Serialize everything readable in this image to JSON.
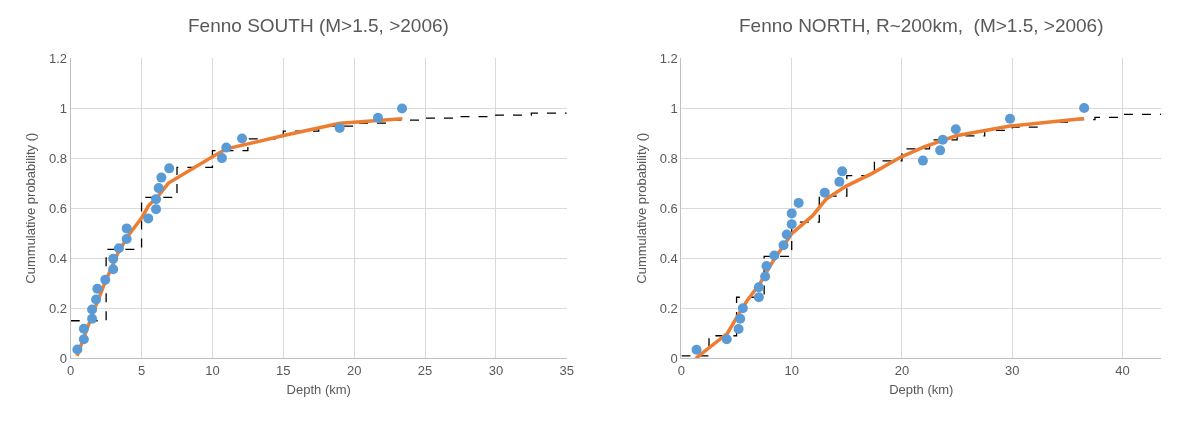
{
  "chart_data": [
    {
      "type": "scatter",
      "title": "Fenno SOUTH (M>1.5, >2006)",
      "xlabel": "Depth (km)",
      "ylabel": "Cummulative probability ()",
      "xlim": [
        0,
        35
      ],
      "xticks": [
        0,
        5,
        10,
        15,
        20,
        25,
        30,
        35
      ],
      "ylim": [
        0,
        1.2
      ],
      "yticks": [
        0,
        0.2,
        0.4,
        0.6,
        0.8,
        1,
        1.2
      ],
      "grid": true,
      "series": [
        {
          "type": "step",
          "color": "#000000",
          "line_style": "dashed",
          "marker": "none",
          "x": [
            0,
            2.5,
            5,
            7.5,
            10,
            12.5,
            15,
            17.5,
            20,
            22.5,
            25,
            27.5,
            30,
            32.5,
            35
          ],
          "values": [
            0.15,
            0.435,
            0.643,
            0.763,
            0.83,
            0.877,
            0.908,
            0.928,
            0.94,
            0.952,
            0.96,
            0.966,
            0.972,
            0.98,
            0.98
          ]
        },
        {
          "type": "line",
          "color": "#ed7d31",
          "line_style": "solid",
          "marker": "none",
          "x": [
            0.45,
            1.5,
            2.4,
            3.3,
            4.1,
            5.0,
            5.5,
            6.2,
            6.9,
            10.0,
            11.0,
            15.1,
            19.0,
            23.4
          ],
          "values": [
            0.01,
            0.17,
            0.3,
            0.417,
            0.494,
            0.56,
            0.61,
            0.65,
            0.7,
            0.805,
            0.837,
            0.891,
            0.939,
            0.957
          ]
        },
        {
          "color": "#5b9bd5",
          "marker": "circle",
          "x": [
            0.47,
            0.93,
            0.93,
            1.51,
            1.51,
            1.79,
            1.88,
            2.44,
            3.0,
            3.0,
            3.4,
            3.95,
            3.95,
            5.47,
            6.02,
            6.02,
            6.21,
            6.4,
            6.95,
            10.67,
            10.98,
            12.09,
            18.98,
            21.68,
            23.38
          ],
          "values": [
            0.035,
            0.076,
            0.118,
            0.158,
            0.195,
            0.235,
            0.278,
            0.314,
            0.356,
            0.398,
            0.44,
            0.477,
            0.519,
            0.559,
            0.596,
            0.636,
            0.68,
            0.722,
            0.759,
            0.8,
            0.842,
            0.878,
            0.92,
            0.961,
            0.998
          ]
        }
      ]
    },
    {
      "type": "scatter",
      "title": "Fenno NORTH, R~200km,  (M>1.5, >2006)",
      "xlabel": "Depth (km)",
      "ylabel": "Cummulative probability ()",
      "xlim": [
        0,
        43.5
      ],
      "xticks": [
        0,
        10,
        20,
        30,
        40
      ],
      "ylim": [
        0,
        1.2
      ],
      "yticks": [
        0,
        0.2,
        0.4,
        0.6,
        0.8,
        1,
        1.2
      ],
      "grid": true,
      "series": [
        {
          "type": "step",
          "color": "#000000",
          "line_style": "dashed",
          "marker": "none",
          "x": [
            0,
            2.5,
            5,
            7.5,
            10,
            12.5,
            15,
            17.5,
            20,
            22.5,
            25,
            27.5,
            30,
            32.5,
            35,
            37.5,
            40,
            43.5
          ],
          "values": [
            0.01,
            0.09,
            0.244,
            0.407,
            0.544,
            0.648,
            0.73,
            0.789,
            0.837,
            0.873,
            0.889,
            0.911,
            0.924,
            0.944,
            0.954,
            0.963,
            0.975,
            0.978
          ]
        },
        {
          "type": "line",
          "color": "#ed7d31",
          "line_style": "solid",
          "marker": "none",
          "x": [
            1.3,
            4.17,
            5.06,
            5.95,
            7.14,
            8.33,
            10.0,
            11.9,
            13.1,
            14.9,
            17.3,
            19.9,
            22.0,
            24.9,
            29.8,
            36.5
          ],
          "values": [
            0.0,
            0.1,
            0.166,
            0.23,
            0.3,
            0.39,
            0.498,
            0.57,
            0.635,
            0.687,
            0.739,
            0.804,
            0.845,
            0.889,
            0.928,
            0.958
          ]
        },
        {
          "color": "#5b9bd5",
          "marker": "circle",
          "x": [
            1.37,
            4.11,
            5.18,
            5.33,
            5.57,
            7.02,
            7.02,
            7.59,
            7.71,
            8.42,
            9.26,
            9.55,
            10.0,
            10.0,
            10.63,
            13.0,
            14.32,
            14.58,
            21.9,
            23.46,
            23.7,
            24.88,
            29.8,
            36.52
          ],
          "values": [
            0.034,
            0.076,
            0.117,
            0.158,
            0.2,
            0.244,
            0.284,
            0.327,
            0.369,
            0.411,
            0.452,
            0.495,
            0.536,
            0.579,
            0.621,
            0.662,
            0.705,
            0.747,
            0.79,
            0.831,
            0.873,
            0.915,
            0.957,
            1.0
          ]
        }
      ]
    }
  ]
}
